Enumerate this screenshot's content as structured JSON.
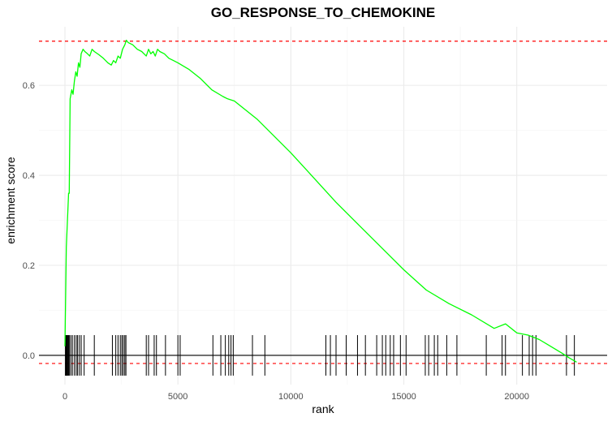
{
  "chart_data": {
    "type": "line",
    "title": "GO_RESPONSE_TO_CHEMOKINE",
    "xlabel": "rank",
    "ylabel": "enrichment score",
    "xlim": [
      -1150,
      24000
    ],
    "ylim": [
      -0.065,
      0.73
    ],
    "x_ticks": [
      0,
      5000,
      10000,
      15000,
      20000
    ],
    "x_tick_labels": [
      "0",
      "5000",
      "10000",
      "15000",
      "20000"
    ],
    "y_ticks": [
      0.0,
      0.2,
      0.4,
      0.6
    ],
    "y_tick_labels": [
      "0.0",
      "0.2",
      "0.4",
      "0.6"
    ],
    "grid": true,
    "colors": {
      "line": "#00ff00",
      "threshold": "#ff0000",
      "zero_line": "#000000",
      "hits": "#000000",
      "grid": "#ebebeb"
    },
    "threshold_lines": [
      0.698,
      -0.018
    ],
    "zero_line": 0.0,
    "series": [
      {
        "x": [
          0,
          60,
          110,
          160,
          190,
          230,
          300,
          360,
          420,
          480,
          540,
          600,
          660,
          720,
          800,
          880,
          1000,
          1100,
          1200,
          1300,
          1500,
          1700,
          1900,
          2050,
          2150,
          2250,
          2350,
          2450,
          2550,
          2650,
          2720,
          2800,
          3000,
          3200,
          3400,
          3600,
          3700,
          3800,
          3900,
          4000,
          4100,
          4200,
          4400,
          4600,
          4800,
          5000,
          5500,
          6000,
          6500,
          7000,
          7200,
          7500,
          8000,
          8500,
          9000,
          10000,
          11000,
          12000,
          13000,
          14000,
          15000,
          16000,
          17000,
          18000,
          19000,
          19500,
          20000,
          20500,
          21000,
          21500,
          22000,
          22300,
          22650
        ],
        "y": [
          0.02,
          0.24,
          0.3,
          0.36,
          0.36,
          0.57,
          0.59,
          0.58,
          0.61,
          0.63,
          0.62,
          0.65,
          0.64,
          0.67,
          0.68,
          0.675,
          0.67,
          0.665,
          0.68,
          0.675,
          0.668,
          0.66,
          0.65,
          0.645,
          0.655,
          0.65,
          0.665,
          0.66,
          0.68,
          0.69,
          0.7,
          0.695,
          0.69,
          0.68,
          0.675,
          0.665,
          0.68,
          0.67,
          0.675,
          0.665,
          0.68,
          0.675,
          0.67,
          0.66,
          0.655,
          0.65,
          0.635,
          0.615,
          0.59,
          0.575,
          0.57,
          0.565,
          0.545,
          0.525,
          0.5,
          0.45,
          0.395,
          0.34,
          0.29,
          0.24,
          0.19,
          0.145,
          0.115,
          0.09,
          0.06,
          0.07,
          0.05,
          0.045,
          0.035,
          0.02,
          0.005,
          -0.005,
          -0.015
        ]
      }
    ],
    "hits": [
      20,
      40,
      60,
      80,
      100,
      130,
      160,
      200,
      260,
      330,
      420,
      500,
      560,
      640,
      720,
      850,
      1300,
      2100,
      2250,
      2350,
      2450,
      2520,
      2580,
      2650,
      2700,
      3600,
      3700,
      3950,
      4050,
      4450,
      5000,
      5100,
      6550,
      6900,
      7100,
      7250,
      7350,
      7450,
      8300,
      8850,
      11550,
      11750,
      12000,
      12450,
      12950,
      13300,
      13800,
      14050,
      14200,
      14400,
      14550,
      14850,
      15100,
      15950,
      16100,
      16350,
      16500,
      16900,
      17350,
      18650,
      19350,
      19500,
      20250,
      20550,
      20700,
      20850,
      22200,
      22550
    ]
  }
}
